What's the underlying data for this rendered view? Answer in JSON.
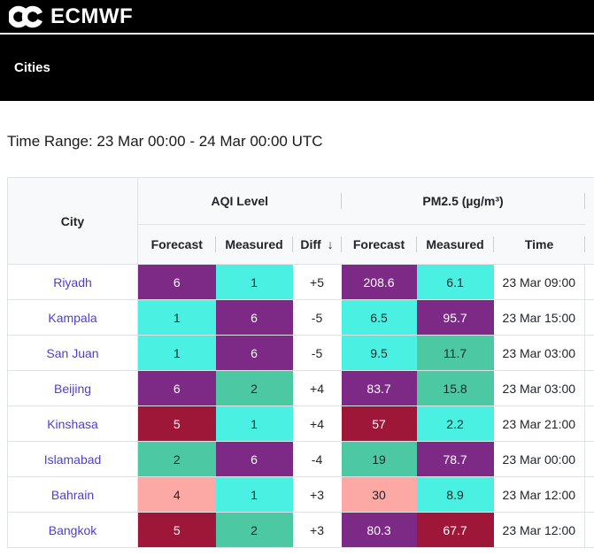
{
  "topbar": {
    "brand": "ECMWF"
  },
  "nav": {
    "title": "Cities"
  },
  "time_range": {
    "label": "Time Range:",
    "value": "23 Mar 00:00 - 24 Mar 00:00 UTC"
  },
  "colors": {
    "level_1": "#4af0e2",
    "level_2": "#4cc9a2",
    "level_4": "#fca8a4",
    "level_5": "#9e1638",
    "level_6": "#7c2a85",
    "dark_text": "#212529",
    "light_text": "#ffffff",
    "link": "#4e3cdb"
  },
  "table": {
    "city_header": "City",
    "groups": [
      {
        "label": "AQI Level"
      },
      {
        "label": "PM2.5 (µg/m³)"
      }
    ],
    "subheaders": {
      "aqi_forecast": "Forecast",
      "aqi_measured": "Measured",
      "diff": "Diff",
      "sort_icon": "↓",
      "pm_forecast": "Forecast",
      "pm_measured": "Measured",
      "time": "Time"
    },
    "rows": [
      {
        "city": "Riyadh",
        "aqi_forecast": "6",
        "aqi_measured": "1",
        "diff": "+5",
        "pm_forecast": "208.6",
        "pm_forecast_level": 6,
        "pm_measured": "6.1",
        "pm_measured_level": 1,
        "time": "23 Mar 09:00"
      },
      {
        "city": "Kampala",
        "aqi_forecast": "1",
        "aqi_measured": "6",
        "diff": "-5",
        "pm_forecast": "6.5",
        "pm_forecast_level": 1,
        "pm_measured": "95.7",
        "pm_measured_level": 6,
        "time": "23 Mar 15:00"
      },
      {
        "city": "San Juan",
        "aqi_forecast": "1",
        "aqi_measured": "6",
        "diff": "-5",
        "pm_forecast": "9.5",
        "pm_forecast_level": 1,
        "pm_measured": "11.7",
        "pm_measured_level": 2,
        "time": "23 Mar 03:00"
      },
      {
        "city": "Beijing",
        "aqi_forecast": "6",
        "aqi_measured": "2",
        "diff": "+4",
        "pm_forecast": "83.7",
        "pm_forecast_level": 6,
        "pm_measured": "15.8",
        "pm_measured_level": 2,
        "time": "23 Mar 03:00"
      },
      {
        "city": "Kinshasa",
        "aqi_forecast": "5",
        "aqi_measured": "1",
        "diff": "+4",
        "pm_forecast": "57",
        "pm_forecast_level": 5,
        "pm_measured": "2.2",
        "pm_measured_level": 1,
        "time": "23 Mar 21:00"
      },
      {
        "city": "Islamabad",
        "aqi_forecast": "2",
        "aqi_measured": "6",
        "diff": "-4",
        "pm_forecast": "19",
        "pm_forecast_level": 2,
        "pm_measured": "78.7",
        "pm_measured_level": 6,
        "time": "23 Mar 00:00"
      },
      {
        "city": "Bahrain",
        "aqi_forecast": "4",
        "aqi_measured": "1",
        "diff": "+3",
        "pm_forecast": "30",
        "pm_forecast_level": 4,
        "pm_measured": "8.9",
        "pm_measured_level": 1,
        "time": "23 Mar 12:00"
      },
      {
        "city": "Bangkok",
        "aqi_forecast": "5",
        "aqi_measured": "2",
        "diff": "+3",
        "pm_forecast": "80.3",
        "pm_forecast_level": 6,
        "pm_measured": "67.7",
        "pm_measured_level": 5,
        "time": "23 Mar 12:00"
      }
    ]
  }
}
